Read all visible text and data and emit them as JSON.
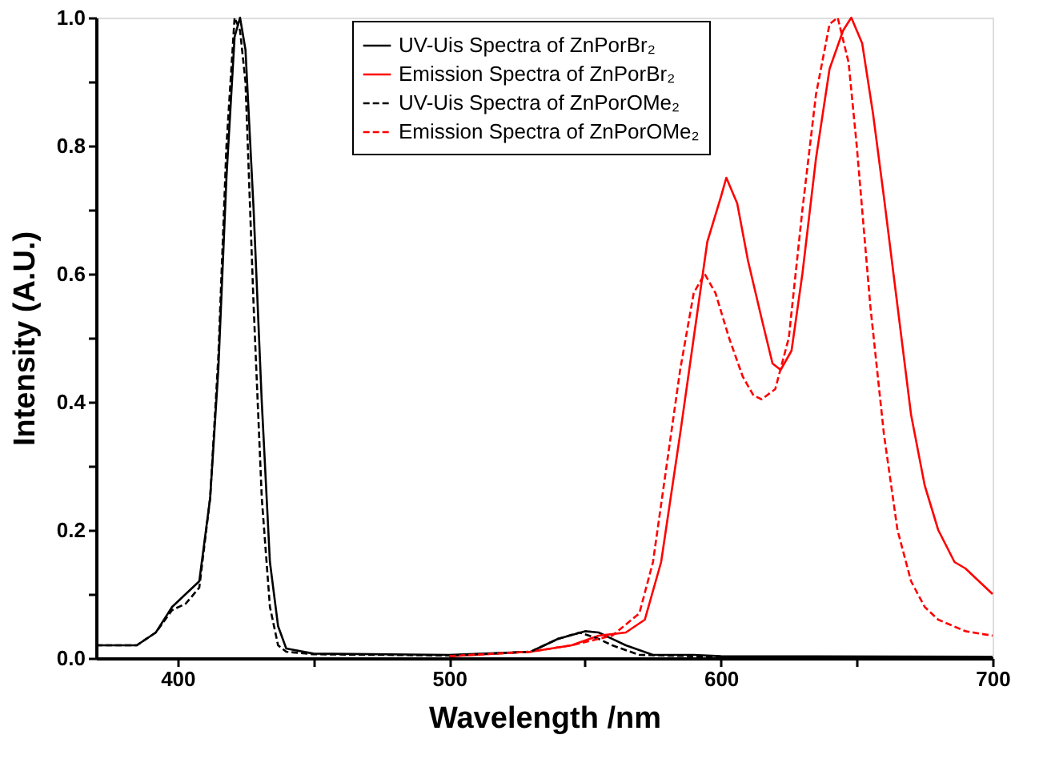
{
  "chart_data": {
    "type": "line",
    "xlabel": "Wavelength /nm",
    "ylabel": "Intensity (A.U.)",
    "xlim": [
      370,
      700
    ],
    "xticks": [
      400,
      {
        "value": 450,
        "label": null
      },
      500,
      {
        "value": 550,
        "label": null
      },
      600,
      {
        "value": 650,
        "label": null
      },
      700
    ],
    "ylim": [
      0,
      1.0
    ],
    "yticks": [
      {
        "value": 0,
        "label": "0.0"
      },
      {
        "value": 0.1,
        "label": null
      },
      0.2,
      {
        "value": 0.3,
        "label": null
      },
      0.4,
      {
        "value": 0.5,
        "label": null
      },
      0.6,
      {
        "value": 0.7,
        "label": null
      },
      0.8,
      {
        "value": 0.9,
        "label": null
      },
      {
        "value": 1.0,
        "label": "1.0"
      }
    ],
    "grid": false,
    "legend": "top right",
    "marker": "none",
    "series": [
      {
        "name": "UV-Uis Spectra of ZnPorBr₂",
        "color": "#000000",
        "line_style": "solid",
        "x": [
          370,
          385,
          392,
          398,
          403,
          408,
          412,
          415,
          418,
          421,
          423,
          425,
          428,
          431,
          434,
          437,
          440,
          450,
          500,
          530,
          540,
          550,
          555,
          565,
          575,
          590,
          600,
          700
        ],
        "values": [
          0.02,
          0.02,
          0.04,
          0.08,
          0.1,
          0.12,
          0.25,
          0.45,
          0.75,
          0.97,
          1.0,
          0.95,
          0.7,
          0.4,
          0.15,
          0.05,
          0.015,
          0.007,
          0.005,
          0.01,
          0.03,
          0.042,
          0.04,
          0.02,
          0.005,
          0.005,
          0.003,
          0.002
        ]
      },
      {
        "name": "Emission Spectra of ZnPorBr₂",
        "color": "#ff0000",
        "line_style": "solid",
        "x": [
          500,
          530,
          545,
          555,
          565,
          572,
          578,
          585,
          590,
          595,
          600,
          602,
          606,
          610,
          615,
          619,
          622,
          626,
          630,
          635,
          640,
          645,
          648,
          652,
          656,
          660,
          665,
          670,
          675,
          680,
          686,
          690,
          695,
          700
        ],
        "values": [
          0.003,
          0.01,
          0.02,
          0.035,
          0.04,
          0.06,
          0.15,
          0.35,
          0.5,
          0.65,
          0.72,
          0.75,
          0.71,
          0.62,
          0.53,
          0.46,
          0.45,
          0.48,
          0.6,
          0.78,
          0.92,
          0.98,
          1.0,
          0.96,
          0.85,
          0.72,
          0.55,
          0.38,
          0.27,
          0.2,
          0.15,
          0.14,
          0.12,
          0.1
        ]
      },
      {
        "name": "UV-Uis Spectra of ZnPorOMe₂",
        "color": "#000000",
        "line_style": "dashed",
        "x": [
          370,
          385,
          392,
          398,
          403,
          408,
          412,
          415,
          418,
          421,
          423,
          425,
          428,
          431,
          434,
          437,
          440,
          450,
          500,
          530,
          540,
          548,
          555,
          560,
          570,
          590,
          600,
          700
        ],
        "values": [
          0.02,
          0.02,
          0.04,
          0.075,
          0.085,
          0.11,
          0.25,
          0.47,
          0.8,
          1.0,
          0.98,
          0.9,
          0.55,
          0.25,
          0.08,
          0.02,
          0.01,
          0.006,
          0.004,
          0.01,
          0.03,
          0.04,
          0.03,
          0.02,
          0.005,
          0.003,
          0.002,
          0.001
        ]
      },
      {
        "name": "Emission Spectra of ZnPorOMe₂",
        "color": "#ff0000",
        "line_style": "dashed",
        "x": [
          500,
          530,
          545,
          560,
          570,
          575,
          580,
          585,
          590,
          594,
          598,
          603,
          608,
          612,
          615,
          620,
          625,
          630,
          635,
          640,
          643,
          647,
          650,
          655,
          660,
          665,
          670,
          675,
          680,
          690,
          700
        ],
        "values": [
          0.003,
          0.01,
          0.02,
          0.035,
          0.07,
          0.15,
          0.3,
          0.45,
          0.57,
          0.6,
          0.57,
          0.5,
          0.44,
          0.41,
          0.404,
          0.42,
          0.5,
          0.7,
          0.88,
          0.99,
          1.0,
          0.93,
          0.8,
          0.55,
          0.35,
          0.2,
          0.12,
          0.08,
          0.06,
          0.042,
          0.035
        ]
      }
    ]
  }
}
